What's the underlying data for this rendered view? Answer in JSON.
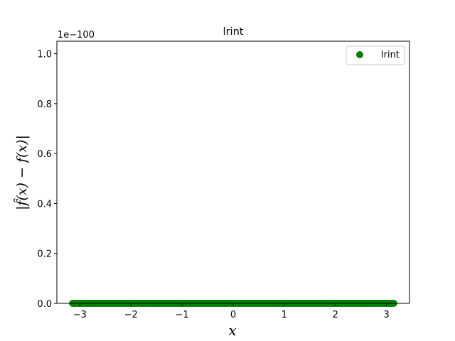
{
  "chart_data": {
    "type": "scatter",
    "title": "lrint",
    "xlabel": "x",
    "ylabel": "|f̂(x) − f(x)|",
    "y_offset_label": "1e−100",
    "xlim": [
      -3.45,
      3.45
    ],
    "ylim": [
      0,
      1.05
    ],
    "xticks": [
      -3,
      -2,
      -1,
      0,
      1,
      2,
      3
    ],
    "xtick_labels": [
      "−3",
      "−2",
      "−1",
      "0",
      "1",
      "2",
      "3"
    ],
    "yticks": [
      0.0,
      0.2,
      0.4,
      0.6,
      0.8,
      1.0
    ],
    "ytick_labels": [
      "0.0",
      "0.2",
      "0.4",
      "0.6",
      "0.8",
      "1.0"
    ],
    "grid": false,
    "legend_position": "top-right",
    "series": [
      {
        "name": "lrint",
        "color": "#008000",
        "marker": "circle",
        "x_range": [
          -3.14159,
          3.14159
        ],
        "y_value": 0,
        "point_count": 200
      }
    ]
  }
}
